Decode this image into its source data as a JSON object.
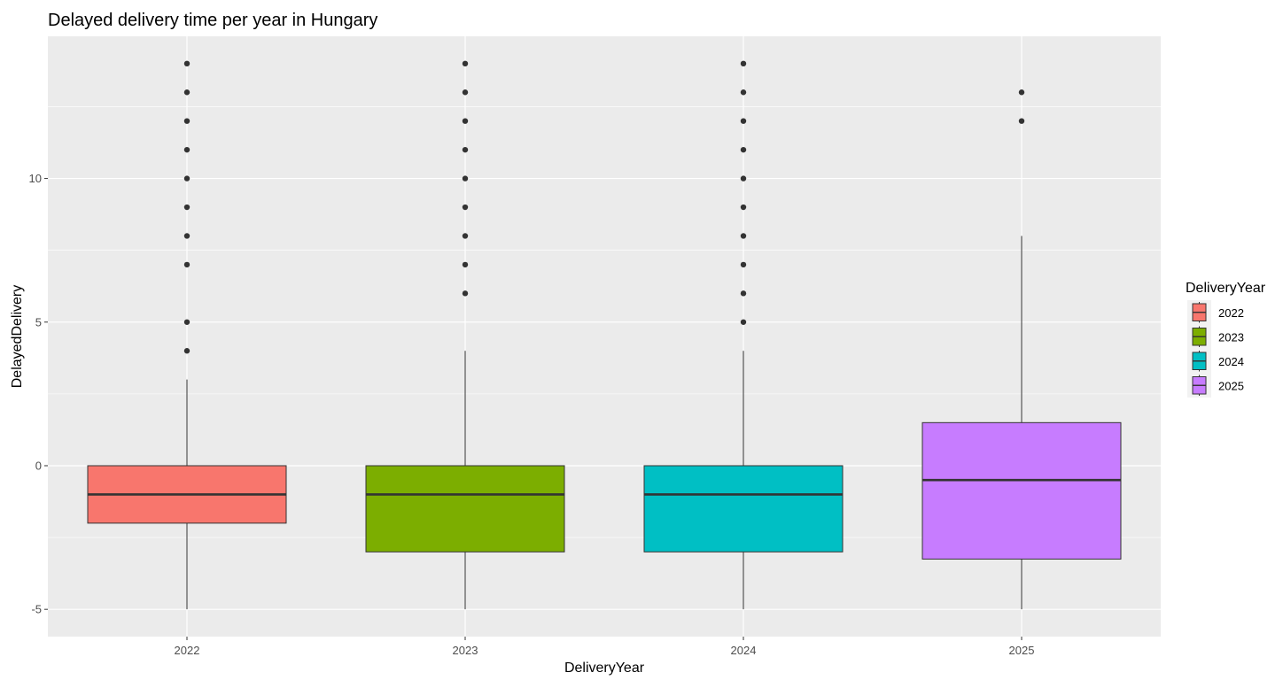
{
  "chart_data": {
    "type": "boxplot",
    "title": "Delayed delivery time per year in Hungary",
    "xlabel": "DeliveryYear",
    "ylabel": "DelayedDelivery",
    "ylim": [
      -5.95,
      14.95
    ],
    "yticks": [
      -5,
      0,
      5,
      10
    ],
    "ytick_labels": [
      "-5",
      "0",
      "5",
      "10"
    ],
    "categories": [
      "2022",
      "2023",
      "2024",
      "2025"
    ],
    "grid": true,
    "legend": {
      "title": "DeliveryYear",
      "position": "right",
      "entries": [
        "2022",
        "2023",
        "2024",
        "2025"
      ]
    },
    "series": [
      {
        "name": "2022",
        "color": "#F8766D",
        "whisker_low": -5,
        "q1": -2,
        "median": -1,
        "q3": 0,
        "whisker_high": 3,
        "outliers": [
          4,
          5,
          7,
          8,
          9,
          10,
          11,
          12,
          13,
          14
        ]
      },
      {
        "name": "2023",
        "color": "#7CAE00",
        "whisker_low": -5,
        "q1": -3,
        "median": -1,
        "q3": 0,
        "whisker_high": 4,
        "outliers": [
          6,
          7,
          8,
          9,
          10,
          11,
          12,
          13,
          14
        ]
      },
      {
        "name": "2024",
        "color": "#00BFC4",
        "whisker_low": -5,
        "q1": -3,
        "median": -1,
        "q3": 0,
        "whisker_high": 4,
        "outliers": [
          5,
          6,
          7,
          8,
          9,
          10,
          11,
          12,
          13,
          14
        ]
      },
      {
        "name": "2025",
        "color": "#C77CFF",
        "whisker_low": -5,
        "q1": -3.25,
        "median": -0.5,
        "q3": 1.5,
        "whisker_high": 8,
        "outliers": [
          12,
          13
        ]
      }
    ]
  }
}
